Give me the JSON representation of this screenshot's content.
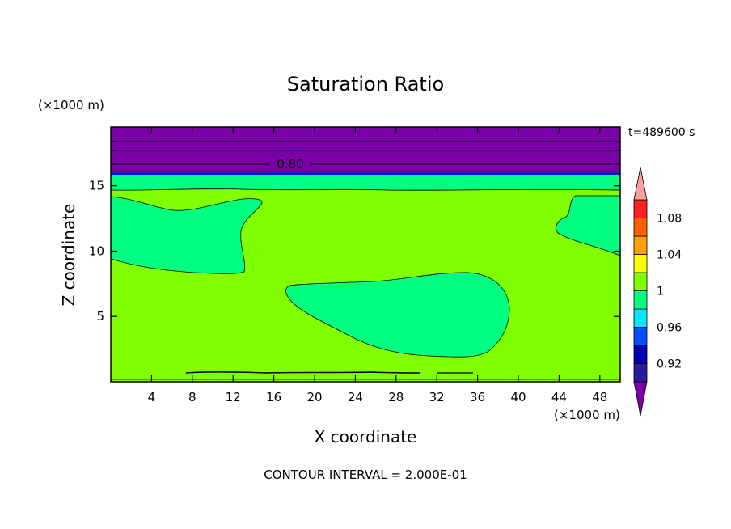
{
  "chart_data": {
    "type": "heatmap",
    "title": "Saturation Ratio",
    "xlabel": "X coordinate",
    "ylabel": "Z coordinate",
    "x_scale_label": "(×1000 m)",
    "y_scale_label": "(×1000 m)",
    "time_label": "t=489600 s",
    "footer": "CONTOUR INTERVAL = 2.000E-01",
    "xlim": [
      0,
      50
    ],
    "ylim": [
      0,
      19.5
    ],
    "x_ticks": [
      "4",
      "8",
      "12",
      "16",
      "20",
      "24",
      "28",
      "32",
      "36",
      "40",
      "44",
      "48"
    ],
    "y_ticks": [
      "5",
      "10",
      "15"
    ],
    "contour_label": "0.80",
    "colorbar": {
      "labels": [
        "1.08",
        "1.04",
        "1",
        "0.96",
        "0.92"
      ],
      "levels": [
        0.9,
        0.92,
        0.94,
        0.96,
        0.98,
        1.0,
        1.02,
        1.04,
        1.06,
        1.08,
        1.1
      ],
      "colors": [
        "#7a00a8",
        "#2a1ca0",
        "#0000b8",
        "#0050ff",
        "#00e8ff",
        "#00ff80",
        "#7fff00",
        "#ffff00",
        "#ffa000",
        "#ff6000",
        "#ff2020",
        "#f4a0a0"
      ]
    },
    "regions": [
      {
        "name": "upper-dry-layer",
        "value_range": "<0.90",
        "color": "#7a00a8",
        "z_range": [
          16.2,
          19.5
        ]
      },
      {
        "name": "transition-layer",
        "value_range": "0.98-1.00",
        "color": "#00ff80",
        "z_range": [
          15,
          16.2
        ]
      },
      {
        "name": "main-layer",
        "value_range": "1.00-1.02",
        "color": "#7fff00",
        "z_range": [
          0,
          15
        ]
      }
    ]
  }
}
